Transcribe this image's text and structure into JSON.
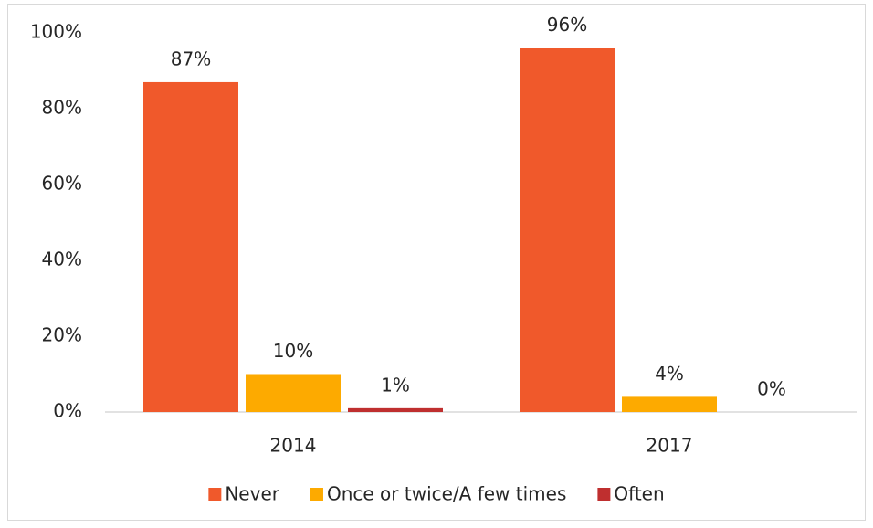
{
  "chart_data": {
    "type": "bar",
    "categories": [
      "2014",
      "2017"
    ],
    "series": [
      {
        "name": "Never",
        "color": "#f0592b",
        "values": [
          87,
          96
        ],
        "value_labels": [
          "87%",
          "96%"
        ]
      },
      {
        "name": "Once or twice/A few times",
        "color": "#fdaa00",
        "values": [
          10,
          4
        ],
        "value_labels": [
          "10%",
          "4%"
        ]
      },
      {
        "name": "Often",
        "color": "#bf2f2f",
        "values": [
          1,
          0
        ],
        "value_labels": [
          "1%",
          "0%"
        ]
      }
    ],
    "ylim": [
      0,
      100
    ],
    "yticks": [
      {
        "value": 0,
        "label": "0%"
      },
      {
        "value": 20,
        "label": "20%"
      },
      {
        "value": 40,
        "label": "40%"
      },
      {
        "value": 60,
        "label": "60%"
      },
      {
        "value": 80,
        "label": "80%"
      },
      {
        "value": 100,
        "label": "100%"
      }
    ],
    "grid": false,
    "legend": "bottom"
  }
}
